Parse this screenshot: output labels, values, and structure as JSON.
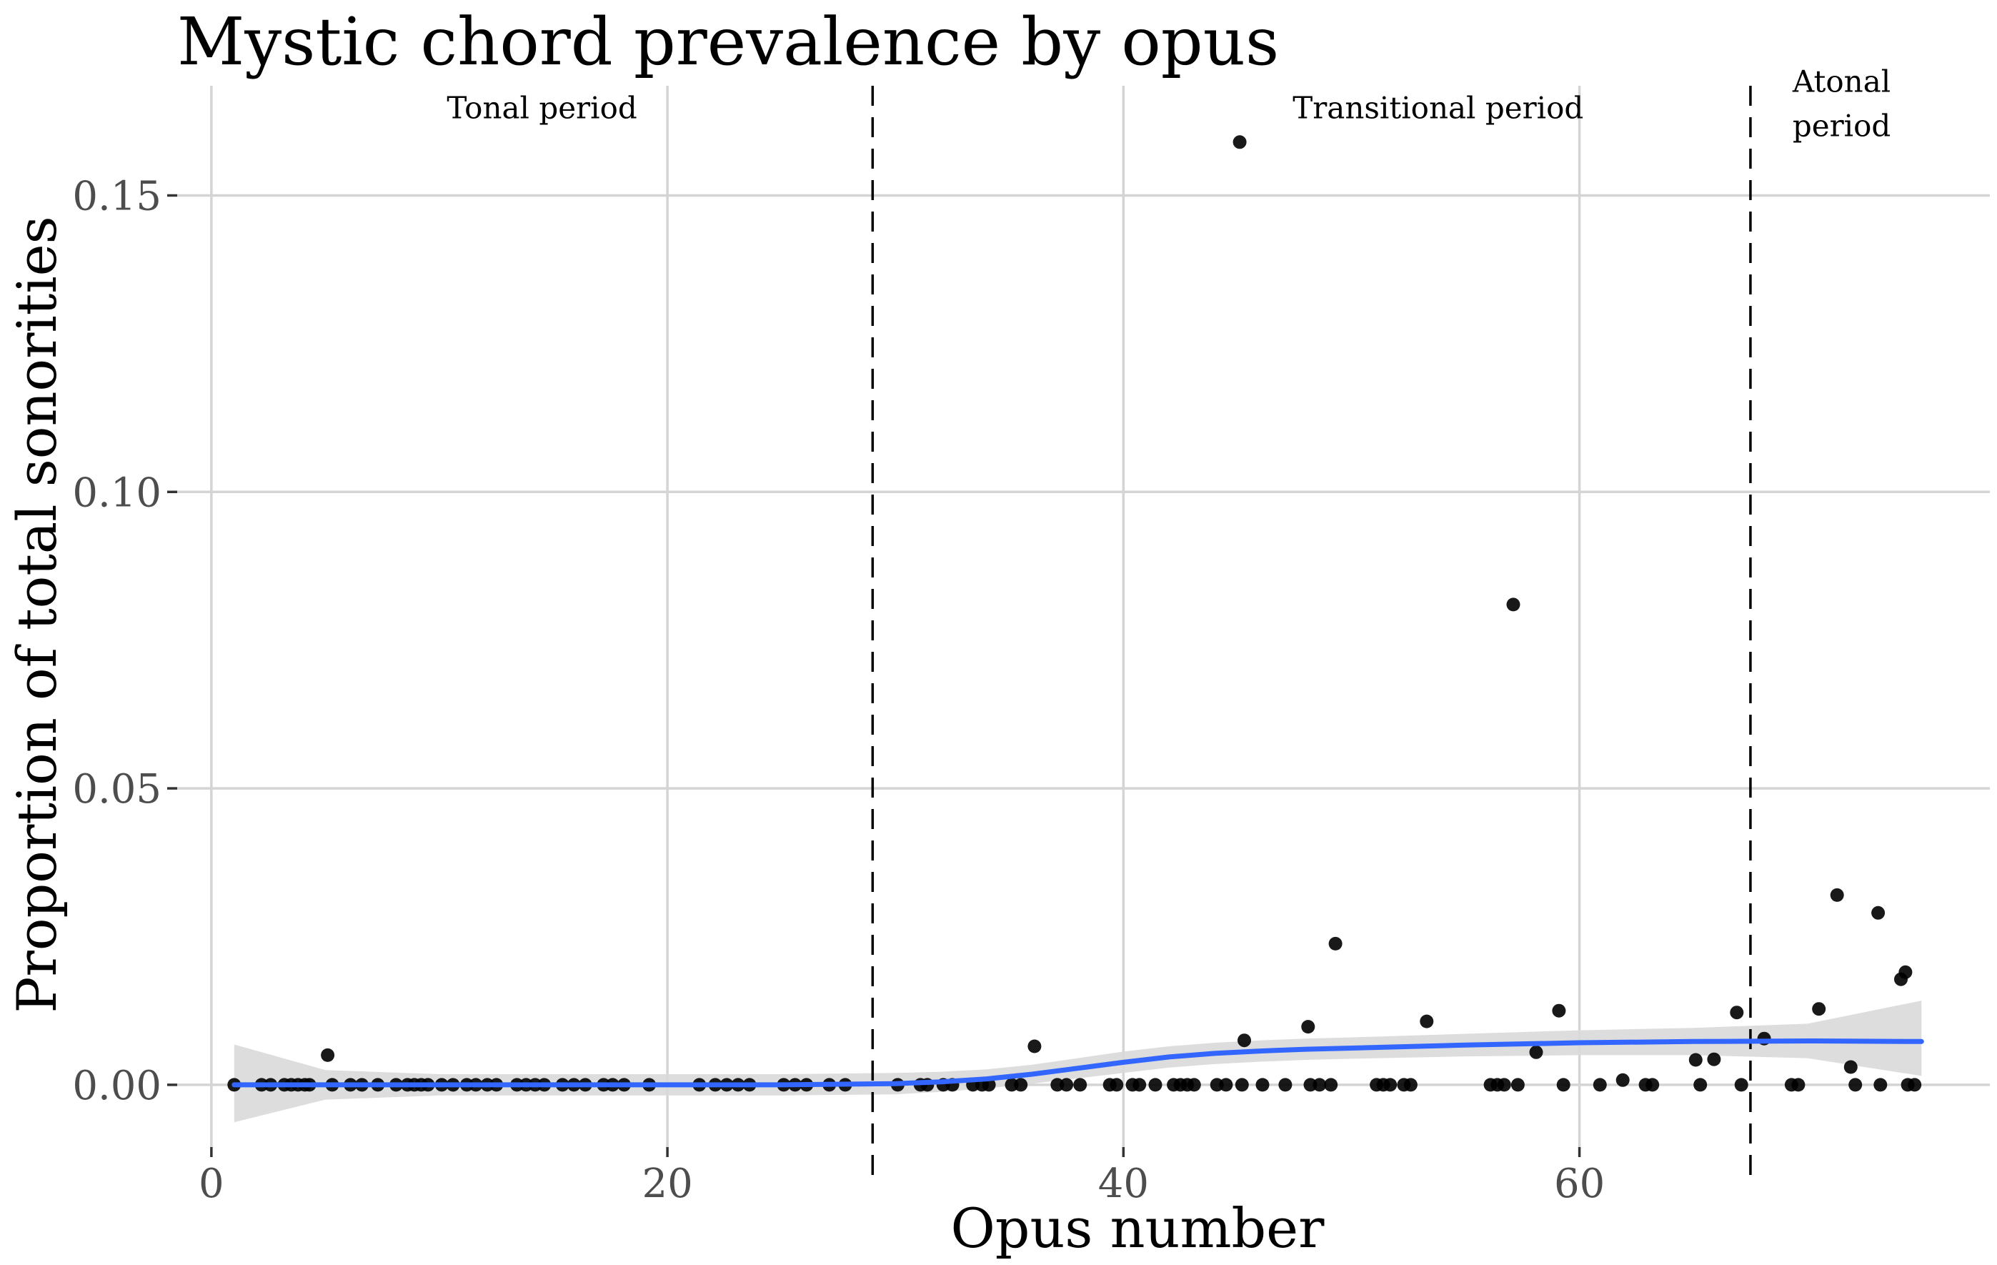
{
  "chart_data": {
    "type": "scatter",
    "title": "Mystic chord prevalence by opus",
    "xlabel": "Opus number",
    "ylabel": "Proportion of total sonorities",
    "xlim": [
      -1.5,
      78
    ],
    "ylim": [
      -0.0105,
      0.1685
    ],
    "x_ticks": [
      0,
      20,
      40,
      60
    ],
    "x_tick_labels": [
      "0",
      "20",
      "40",
      "60"
    ],
    "y_ticks": [
      0,
      0.05,
      0.1,
      0.15
    ],
    "y_tick_labels": [
      "0.00",
      "0.05",
      "0.10",
      "0.15"
    ],
    "grid": true,
    "legend": "none",
    "period_boundaries": [
      29,
      67.5
    ],
    "period_labels": [
      {
        "text": "Tonal period",
        "x": 14.5,
        "y": 0.163
      },
      {
        "text": "Transitional period",
        "x": 53.8,
        "y": 0.163
      },
      {
        "text": "Atonal",
        "x": 71.5,
        "y": 0.1675
      },
      {
        "text": "period",
        "x": 71.5,
        "y": 0.16
      }
    ],
    "point_color": "#000000",
    "smooth_color": "#3366ff",
    "ribbon_color": "#d9d9d9",
    "points": [
      {
        "x": 1,
        "y": 0
      },
      {
        "x": 2.2,
        "y": 0
      },
      {
        "x": 2.6,
        "y": 0
      },
      {
        "x": 3.2,
        "y": 0
      },
      {
        "x": 3.5,
        "y": 0
      },
      {
        "x": 3.8,
        "y": 0
      },
      {
        "x": 4.1,
        "y": 0
      },
      {
        "x": 4.3,
        "y": 0
      },
      {
        "x": 5.1,
        "y": 0.005
      },
      {
        "x": 5.3,
        "y": 0
      },
      {
        "x": 6.1,
        "y": 0
      },
      {
        "x": 6.6,
        "y": 0
      },
      {
        "x": 7.3,
        "y": 0
      },
      {
        "x": 8.1,
        "y": 0
      },
      {
        "x": 8.6,
        "y": 0
      },
      {
        "x": 8.9,
        "y": 0
      },
      {
        "x": 9.2,
        "y": 0
      },
      {
        "x": 9.5,
        "y": 0
      },
      {
        "x": 10.1,
        "y": 0
      },
      {
        "x": 10.6,
        "y": 0
      },
      {
        "x": 11.2,
        "y": 0
      },
      {
        "x": 11.6,
        "y": 0
      },
      {
        "x": 12.1,
        "y": 0
      },
      {
        "x": 12.5,
        "y": 0
      },
      {
        "x": 13.4,
        "y": 0
      },
      {
        "x": 13.8,
        "y": 0
      },
      {
        "x": 14.2,
        "y": 0
      },
      {
        "x": 14.6,
        "y": 0
      },
      {
        "x": 15.4,
        "y": 0
      },
      {
        "x": 15.9,
        "y": 0
      },
      {
        "x": 16.4,
        "y": 0
      },
      {
        "x": 17.2,
        "y": 0
      },
      {
        "x": 17.6,
        "y": 0
      },
      {
        "x": 18.1,
        "y": 0
      },
      {
        "x": 19.2,
        "y": 0
      },
      {
        "x": 21.4,
        "y": 0
      },
      {
        "x": 22.1,
        "y": 0
      },
      {
        "x": 22.6,
        "y": 0
      },
      {
        "x": 23.1,
        "y": 0
      },
      {
        "x": 23.6,
        "y": 0
      },
      {
        "x": 25.1,
        "y": 0
      },
      {
        "x": 25.6,
        "y": 0
      },
      {
        "x": 26.1,
        "y": 0
      },
      {
        "x": 27.1,
        "y": 0
      },
      {
        "x": 27.8,
        "y": 0
      },
      {
        "x": 30.1,
        "y": 0
      },
      {
        "x": 31.1,
        "y": 0
      },
      {
        "x": 31.4,
        "y": 0
      },
      {
        "x": 32.1,
        "y": 0
      },
      {
        "x": 32.5,
        "y": 0
      },
      {
        "x": 33.4,
        "y": 0
      },
      {
        "x": 33.8,
        "y": 0
      },
      {
        "x": 34.1,
        "y": 0
      },
      {
        "x": 35.1,
        "y": 0
      },
      {
        "x": 35.5,
        "y": 0
      },
      {
        "x": 36.1,
        "y": 0.0065
      },
      {
        "x": 37.1,
        "y": 0
      },
      {
        "x": 37.5,
        "y": 0
      },
      {
        "x": 38.1,
        "y": 0
      },
      {
        "x": 39.4,
        "y": 0
      },
      {
        "x": 39.7,
        "y": 0
      },
      {
        "x": 40.4,
        "y": 0
      },
      {
        "x": 40.7,
        "y": 0
      },
      {
        "x": 41.4,
        "y": 0
      },
      {
        "x": 42.2,
        "y": 0
      },
      {
        "x": 42.5,
        "y": 0
      },
      {
        "x": 42.8,
        "y": 0
      },
      {
        "x": 43.1,
        "y": 0
      },
      {
        "x": 44.1,
        "y": 0
      },
      {
        "x": 44.5,
        "y": 0
      },
      {
        "x": 45.2,
        "y": 0
      },
      {
        "x": 45.1,
        "y": 0.159
      },
      {
        "x": 45.3,
        "y": 0.0075
      },
      {
        "x": 46.1,
        "y": 0
      },
      {
        "x": 47.1,
        "y": 0
      },
      {
        "x": 48.1,
        "y": 0.0098
      },
      {
        "x": 48.2,
        "y": 0
      },
      {
        "x": 48.6,
        "y": 0
      },
      {
        "x": 49.1,
        "y": 0
      },
      {
        "x": 49.3,
        "y": 0.0238
      },
      {
        "x": 51.1,
        "y": 0
      },
      {
        "x": 51.4,
        "y": 0
      },
      {
        "x": 51.7,
        "y": 0
      },
      {
        "x": 52.3,
        "y": 0
      },
      {
        "x": 52.6,
        "y": 0
      },
      {
        "x": 53.3,
        "y": 0.0107
      },
      {
        "x": 56.1,
        "y": 0
      },
      {
        "x": 56.4,
        "y": 0
      },
      {
        "x": 56.7,
        "y": 0
      },
      {
        "x": 57.1,
        "y": 0.081
      },
      {
        "x": 57.3,
        "y": 0
      },
      {
        "x": 58.1,
        "y": 0.0055
      },
      {
        "x": 59.1,
        "y": 0.0125
      },
      {
        "x": 59.3,
        "y": 0
      },
      {
        "x": 60.9,
        "y": 0
      },
      {
        "x": 61.9,
        "y": 0.0008
      },
      {
        "x": 62.9,
        "y": 0
      },
      {
        "x": 63.2,
        "y": 0
      },
      {
        "x": 65.1,
        "y": 0.0042
      },
      {
        "x": 65.3,
        "y": 0
      },
      {
        "x": 65.9,
        "y": 0.0043
      },
      {
        "x": 66.9,
        "y": 0.0122
      },
      {
        "x": 67.1,
        "y": 0
      },
      {
        "x": 68.1,
        "y": 0.0078
      },
      {
        "x": 69.3,
        "y": 0
      },
      {
        "x": 69.6,
        "y": 0
      },
      {
        "x": 70.5,
        "y": 0.0128
      },
      {
        "x": 71.3,
        "y": 0.032
      },
      {
        "x": 71.9,
        "y": 0.003
      },
      {
        "x": 72.1,
        "y": 0
      },
      {
        "x": 73.1,
        "y": 0.029
      },
      {
        "x": 73.2,
        "y": 0
      },
      {
        "x": 74.1,
        "y": 0.0178
      },
      {
        "x": 74.3,
        "y": 0.019
      },
      {
        "x": 74.4,
        "y": 0
      },
      {
        "x": 74.7,
        "y": 0
      }
    ],
    "smooth": {
      "x": [
        1,
        5,
        10,
        15,
        20,
        25,
        30,
        32,
        34,
        36,
        38,
        40,
        42,
        44,
        46,
        48,
        50,
        55,
        60,
        65,
        70,
        75
      ],
      "y": [
        0,
        0,
        0,
        0,
        0,
        0,
        0.0002,
        0.0005,
        0.001,
        0.0018,
        0.0028,
        0.0038,
        0.0047,
        0.0053,
        0.0057,
        0.006,
        0.0062,
        0.0067,
        0.0071,
        0.0073,
        0.0074,
        0.0073
      ],
      "lower": [
        -0.0063,
        -0.0025,
        -0.0018,
        -0.0018,
        -0.0018,
        -0.0018,
        -0.0016,
        -0.0012,
        -0.0006,
        0.0002,
        0.0011,
        0.002,
        0.0029,
        0.0035,
        0.0039,
        0.0042,
        0.0044,
        0.0048,
        0.005,
        0.005,
        0.0045,
        0.0015
      ],
      "upper": [
        0.0068,
        0.0025,
        0.0018,
        0.0018,
        0.0018,
        0.0018,
        0.002,
        0.0022,
        0.0026,
        0.0034,
        0.0045,
        0.0056,
        0.0065,
        0.0071,
        0.0075,
        0.0078,
        0.008,
        0.0086,
        0.0092,
        0.0096,
        0.0103,
        0.0142
      ]
    }
  }
}
